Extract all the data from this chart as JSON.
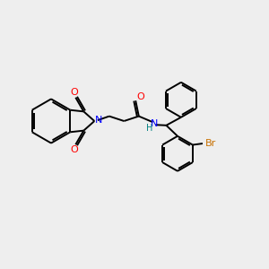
{
  "bg_color": "#eeeeee",
  "bond_color": "#000000",
  "n_color": "#0000ff",
  "o_color": "#ff0000",
  "h_color": "#008080",
  "br_color": "#c87000",
  "line_width": 1.4,
  "figsize": [
    3.0,
    3.0
  ],
  "dpi": 100,
  "xlim": [
    0,
    10
  ],
  "ylim": [
    0,
    10
  ]
}
